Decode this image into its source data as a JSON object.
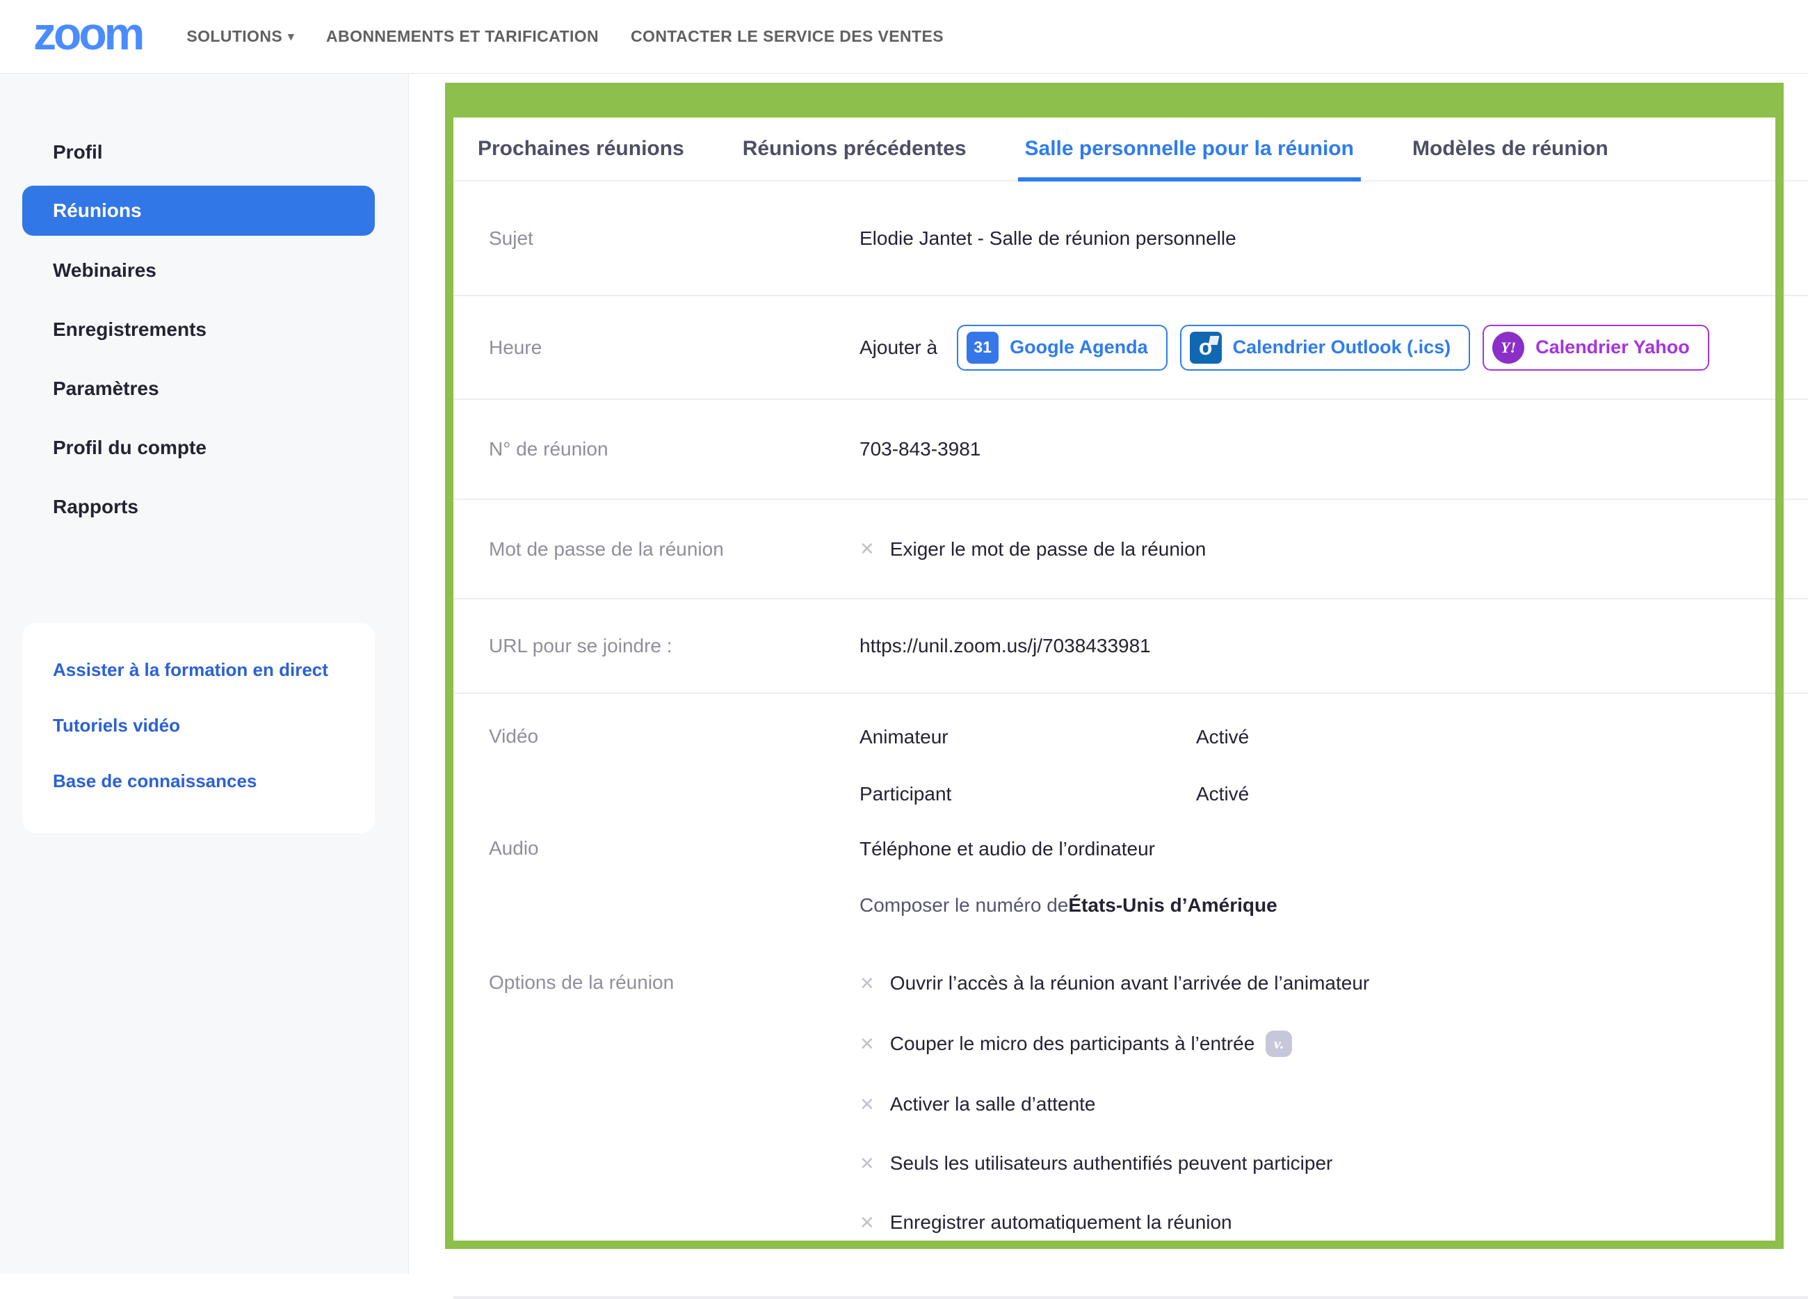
{
  "colors": {
    "accent_blue": "#2e7cf0",
    "sidebar_active_blue": "#3277e6",
    "link_blue": "#2b61d5",
    "annotation_green": "#8dbf4b",
    "yahoo_purple": "#a435dd",
    "outlook_blue": "#1068b3",
    "gcal_blue": "#3577e8",
    "logo_blue": "#4a8cff"
  },
  "header": {
    "logo": "zoom",
    "nav": [
      "SOLUTIONS",
      "ABONNEMENTS ET TARIFICATION",
      "CONTACTER LE SERVICE DES VENTES"
    ],
    "chevron": "▾"
  },
  "sidebar": {
    "items": [
      "Profil",
      "Réunions",
      "Webinaires",
      "Enregistrements",
      "Paramètres",
      "Profil du compte",
      "Rapports"
    ],
    "active_item": "Réunions",
    "help_links": [
      "Assister à la formation en direct",
      "Tutoriels vidéo",
      "Base de connaissances"
    ]
  },
  "tabs": [
    "Prochaines réunions",
    "Réunions précédentes",
    "Salle personnelle pour la réunion",
    "Modèles de réunion"
  ],
  "active_tab": "Salle personnelle pour la réunion",
  "meeting": {
    "sujet": {
      "label": "Sujet",
      "value": "Elodie Jantet - Salle de réunion personnelle"
    },
    "heure": {
      "label": "Heure",
      "add_to": "Ajouter à",
      "google": {
        "label": "Google Agenda",
        "icon_text": "31"
      },
      "outlook": {
        "label": "Calendrier Outlook (.ics)",
        "icon_text": "o"
      },
      "yahoo": {
        "label": "Calendrier Yahoo",
        "icon_text": "Y!"
      }
    },
    "numero": {
      "label": "N° de réunion",
      "value": "703-843-3981"
    },
    "mot_de_passe": {
      "label": "Mot de passe de la réunion",
      "x": "✕",
      "value": "Exiger le mot de passe de la réunion"
    },
    "url": {
      "label": "URL pour se joindre :",
      "value": "https://unil.zoom.us/j/7038433981"
    },
    "video": {
      "label": "Vidéo",
      "rows": [
        {
          "name": "Animateur",
          "state": "Activé"
        },
        {
          "name": "Participant",
          "state": "Activé"
        }
      ]
    },
    "audio": {
      "label": "Audio",
      "value": "Téléphone et audio de l’ordinateur",
      "dial_prefix": "Composer le numéro de ",
      "dial_country": "États-Unis d’Amérique"
    },
    "options": {
      "label": "Options de la réunion",
      "x": "✕",
      "modified_badge": "v.",
      "items": [
        "Ouvrir l’accès à la réunion avant l’arrivée de l’animateur",
        "Couper le micro des participants à l’entrée",
        "Activer la salle d’attente",
        "Seuls les utilisateurs authentifiés peuvent participer",
        "Enregistrer automatiquement la réunion"
      ]
    }
  }
}
